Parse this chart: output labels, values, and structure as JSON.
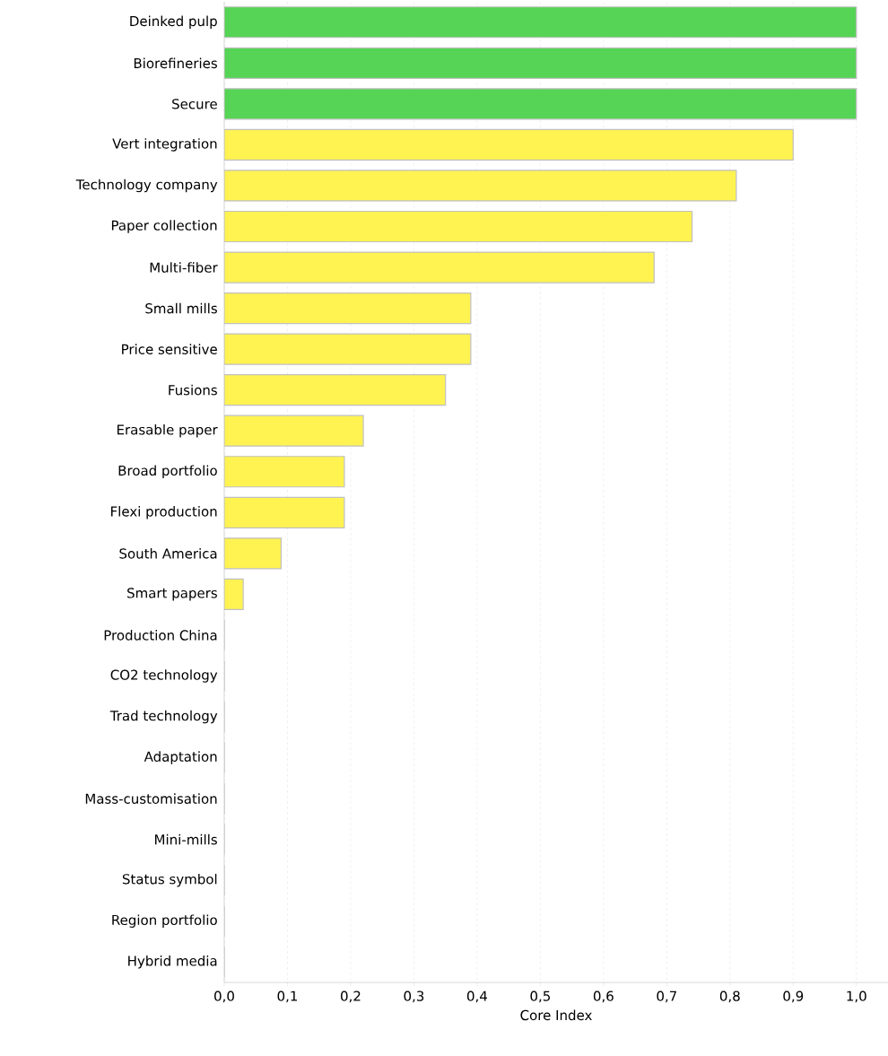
{
  "chart_data": {
    "type": "bar",
    "orientation": "horizontal",
    "xlabel": "Core Index",
    "categories": [
      "Deinked pulp",
      "Biorefineries",
      "Secure",
      "Vert integration",
      "Technology company",
      "Paper collection",
      "Multi-fiber",
      "Small mills",
      "Price sensitive",
      "Fusions",
      "Erasable paper",
      "Broad portfolio",
      "Flexi production",
      "South America",
      "Smart papers",
      "Production China",
      "CO2 technology",
      "Trad technology",
      "Adaptation",
      "Mass-customisation",
      "Mini-mills",
      "Status symbol",
      "Region portfolio",
      "Hybrid media"
    ],
    "values": [
      1.0,
      1.0,
      1.0,
      0.9,
      0.81,
      0.74,
      0.68,
      0.39,
      0.39,
      0.35,
      0.22,
      0.19,
      0.19,
      0.09,
      0.03,
      0,
      0,
      0,
      0,
      0,
      0,
      0,
      0,
      0
    ],
    "colors": [
      "#55d455",
      "#55d455",
      "#55d455",
      "#fff352",
      "#fff352",
      "#fff352",
      "#fff352",
      "#fff352",
      "#fff352",
      "#fff352",
      "#fff352",
      "#fff352",
      "#fff352",
      "#fff352",
      "#fff352",
      "#fff352",
      "#fff352",
      "#fff352",
      "#fff352",
      "#fff352",
      "#fff352",
      "#fff352",
      "#fff352",
      "#fff352"
    ],
    "xlim": [
      0,
      1.05
    ],
    "xticks": [
      {
        "value": 0,
        "label": "0,0"
      },
      {
        "value": 0.1,
        "label": "0,1"
      },
      {
        "value": 0.2,
        "label": "0,2"
      },
      {
        "value": 0.3,
        "label": "0,3"
      },
      {
        "value": 0.4,
        "label": "0,4"
      },
      {
        "value": 0.5,
        "label": "0,5"
      },
      {
        "value": 0.6,
        "label": "0,6"
      },
      {
        "value": 0.7,
        "label": "0,7"
      },
      {
        "value": 0.8,
        "label": "0,8"
      },
      {
        "value": 0.9,
        "label": "0,9"
      },
      {
        "value": 1.0,
        "label": "1,0"
      }
    ],
    "grid": "x"
  }
}
